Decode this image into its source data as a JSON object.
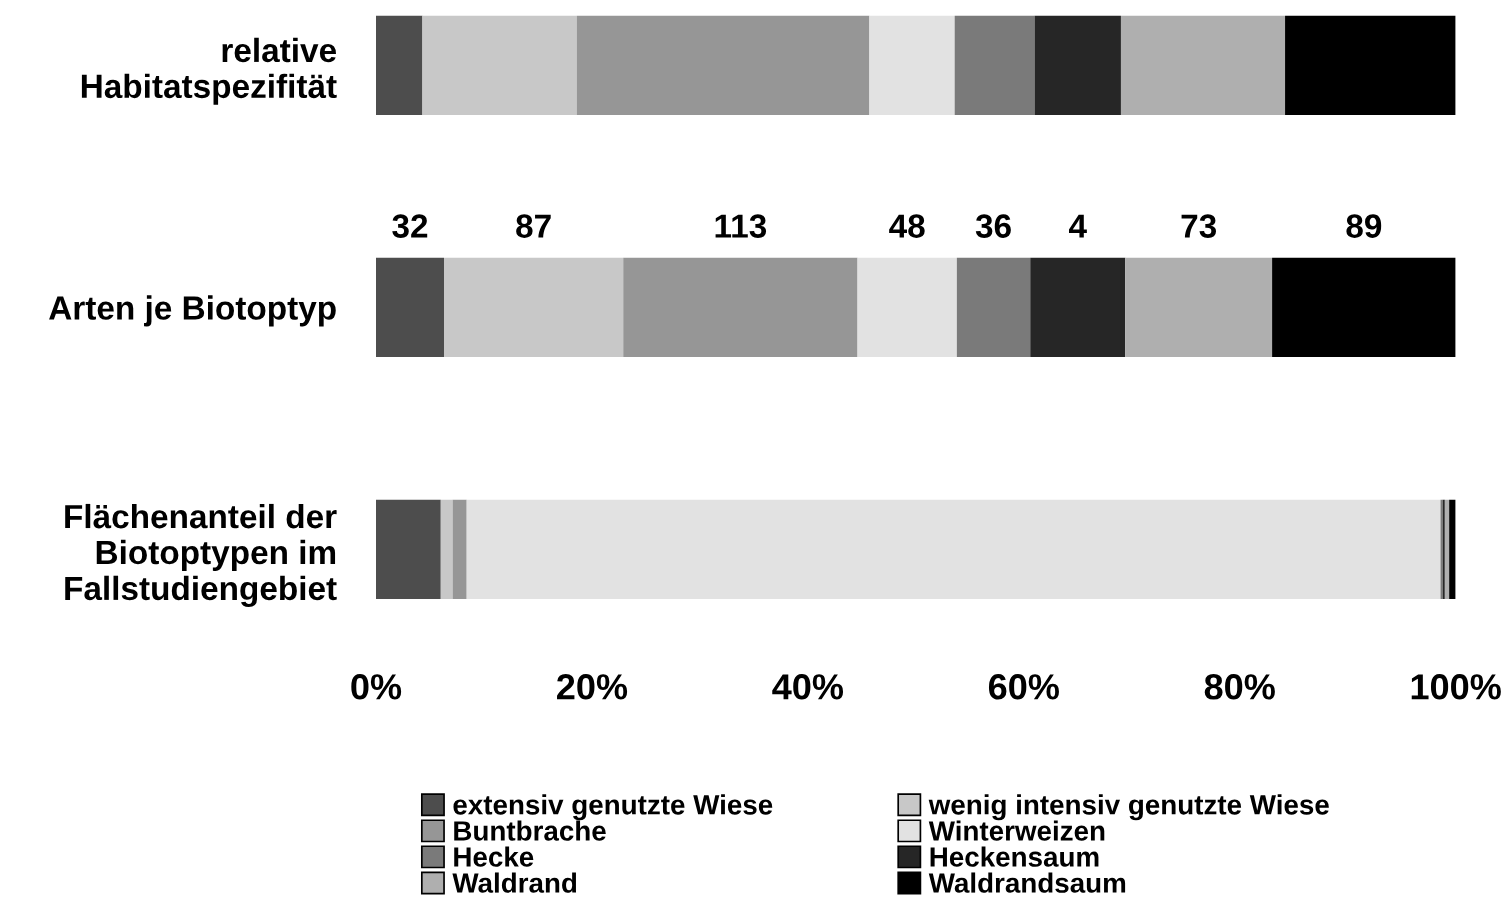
{
  "chart_data": {
    "type": "bar",
    "orientation": "horizontal",
    "stacked": true,
    "categories": [
      "relative\nHabitatspezifität",
      "Arten je Biotoptyp",
      "Flächenanteil der\nBiotoptypen im\nFallstudiengebiet"
    ],
    "series": [
      {
        "name": "extensiv genutzte Wiese",
        "color": "#4d4d4d",
        "values": [
          4.3,
          6.3,
          6.0
        ]
      },
      {
        "name": "wenig intensiv genutzte Wiese",
        "color": "#c8c8c8",
        "values": [
          14.3,
          16.6,
          1.1
        ]
      },
      {
        "name": "Buntbrache",
        "color": "#969696",
        "values": [
          27.1,
          21.7,
          1.3
        ]
      },
      {
        "name": "Winterweizen",
        "color": "#e2e2e2",
        "values": [
          7.9,
          9.2,
          90.2
        ]
      },
      {
        "name": "Hecke",
        "color": "#7a7a7a",
        "values": [
          7.4,
          6.8,
          0.2
        ]
      },
      {
        "name": "Heckensaum",
        "color": "#262626",
        "values": [
          8.0,
          8.8,
          0.2
        ]
      },
      {
        "name": "Waldrand",
        "color": "#afafaf",
        "values": [
          15.2,
          13.6,
          0.4
        ]
      },
      {
        "name": "Waldrandsaum",
        "color": "#000000",
        "values": [
          15.8,
          17.0,
          0.6
        ]
      }
    ],
    "annotations": [
      "32",
      "87",
      "113",
      "48",
      "36",
      "4",
      "73",
      "89"
    ],
    "xlim": [
      0,
      100
    ],
    "xticks": [
      {
        "value": 0,
        "label": "0%"
      },
      {
        "value": 20,
        "label": "20%"
      },
      {
        "value": 40,
        "label": "40%"
      },
      {
        "value": 60,
        "label": "60%"
      },
      {
        "value": 80,
        "label": "80%"
      },
      {
        "value": 100,
        "label": "100%"
      }
    ],
    "legend": "bottom",
    "grid": false
  }
}
